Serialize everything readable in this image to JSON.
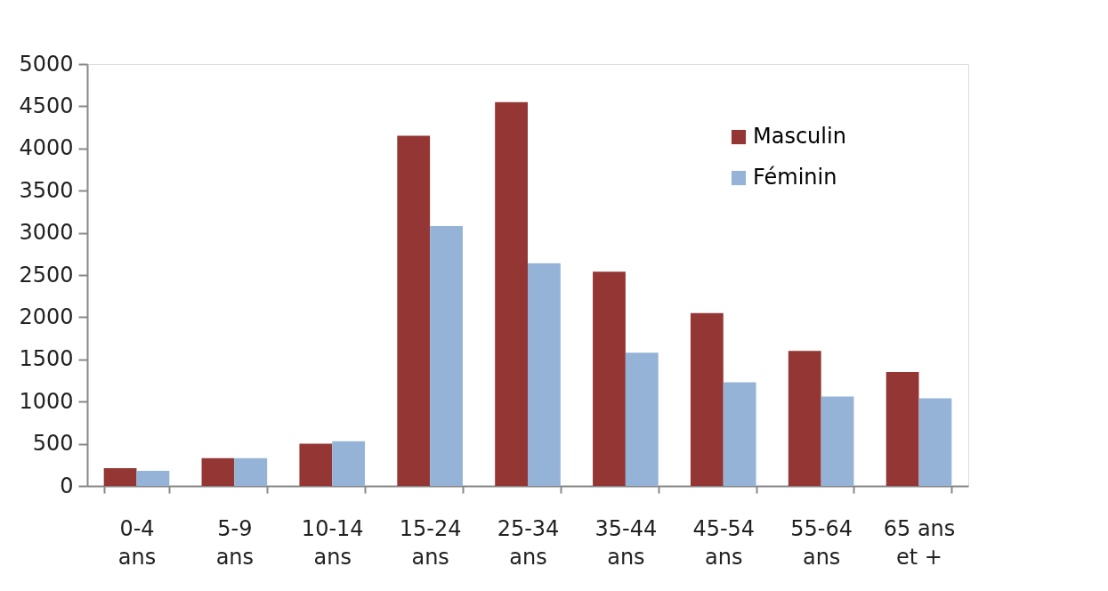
{
  "chart_data": {
    "type": "bar",
    "categories": [
      "0-4 ans",
      "5-9 ans",
      "10-14 ans",
      "15-24 ans",
      "25-34 ans",
      "35-44 ans",
      "45-54 ans",
      "55-64 ans",
      "65 ans et +"
    ],
    "series": [
      {
        "name": "Masculin",
        "color": "#943634",
        "values": [
          210,
          330,
          500,
          4150,
          4550,
          2540,
          2050,
          1600,
          1350
        ]
      },
      {
        "name": "Féminin",
        "color": "#95b3d7",
        "values": [
          180,
          330,
          530,
          3080,
          2640,
          1580,
          1230,
          1060,
          1040
        ]
      }
    ],
    "ylim": [
      0,
      5000
    ],
    "yticks": [
      0,
      500,
      1000,
      1500,
      2000,
      2500,
      3000,
      3500,
      4000,
      4500,
      5000
    ],
    "grid": false,
    "legend": "top right"
  }
}
